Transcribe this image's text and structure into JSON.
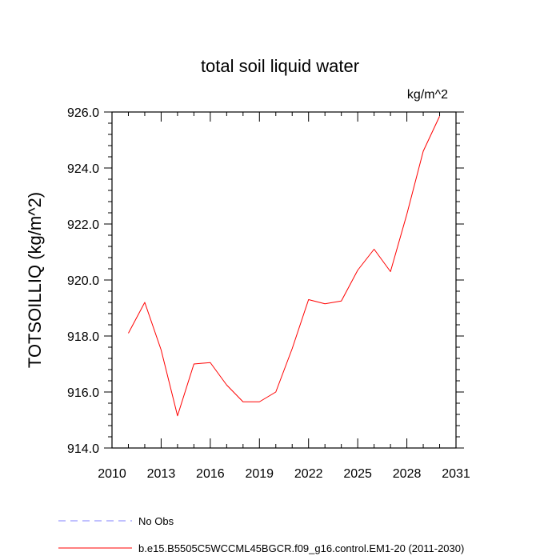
{
  "chart_data": {
    "type": "line",
    "title": "total soil liquid water",
    "units": "kg/m^2",
    "ylabel": "TOTSOILLIQ  (kg/m^2)",
    "xlabel": "",
    "xlim": [
      2010,
      2031
    ],
    "ylim": [
      914.0,
      926.0
    ],
    "x_ticks": [
      2010,
      2013,
      2016,
      2019,
      2022,
      2025,
      2028,
      2031
    ],
    "x_tick_labels": [
      "2010",
      "2013",
      "2016",
      "2019",
      "2022",
      "2025",
      "2028",
      "2031"
    ],
    "y_ticks": [
      914.0,
      916.0,
      918.0,
      920.0,
      922.0,
      924.0,
      926.0
    ],
    "y_tick_labels": [
      "914.0",
      "916.0",
      "918.0",
      "920.0",
      "922.0",
      "924.0",
      "926.0"
    ],
    "grid": false,
    "legend_placement": "bottom",
    "series": [
      {
        "name": "b.e15.B5505C5WCCML45BGCR.f09_g16.control.EM1-20 (2011-2030)",
        "color": "#ff0000",
        "style": "solid",
        "x": [
          2011,
          2012,
          2013,
          2014,
          2015,
          2016,
          2017,
          2018,
          2019,
          2020,
          2021,
          2022,
          2023,
          2024,
          2025,
          2026,
          2027,
          2028,
          2029,
          2030
        ],
        "y": [
          918.1,
          919.2,
          917.5,
          915.15,
          917.0,
          917.05,
          916.25,
          915.65,
          915.65,
          916.0,
          917.55,
          919.3,
          919.15,
          919.25,
          920.35,
          921.1,
          920.3,
          922.35,
          924.6,
          925.85
        ]
      }
    ],
    "legend": [
      {
        "label": "No Obs",
        "color": "#8080ff",
        "style": "dashed"
      },
      {
        "label": "b.e15.B5505C5WCCML45BGCR.f09_g16.control.EM1-20 (2011-2030)",
        "color": "#ff0000",
        "style": "solid"
      }
    ]
  }
}
